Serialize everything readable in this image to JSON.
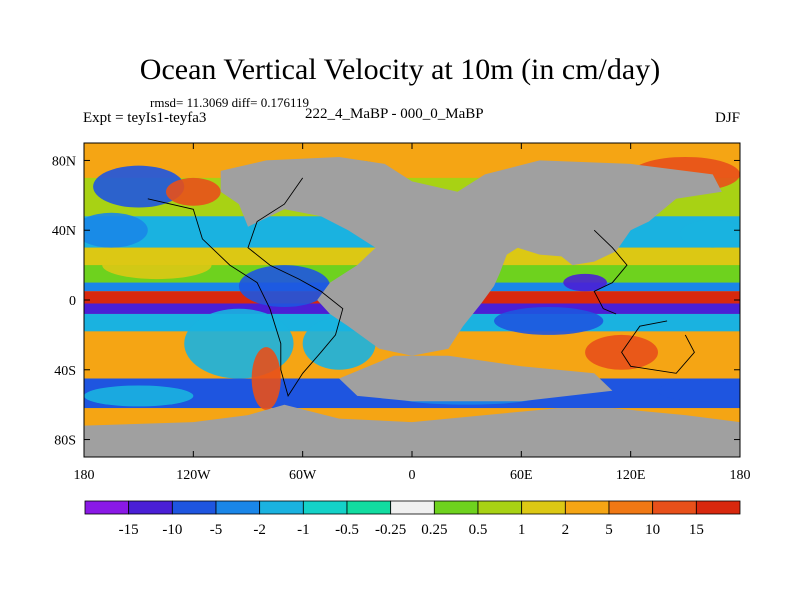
{
  "chart_data": {
    "type": "heatmap",
    "title": "Ocean Vertical Velocity at 10m (in cm/day)",
    "stats_text": "rmsd= 11.3069 diff= 0.176119",
    "left_label": "Expt = teyIs1-teyfa3",
    "center_label": "222_4_MaBP - 000_0_MaBP",
    "right_label": "DJF",
    "x_ticks": [
      "180",
      "120W",
      "60W",
      "0",
      "60E",
      "120E",
      "180"
    ],
    "x_values": [
      -180,
      -120,
      -60,
      0,
      60,
      120,
      180
    ],
    "y_ticks": [
      "80N",
      "40N",
      "0",
      "40S",
      "80S"
    ],
    "y_values": [
      80,
      40,
      0,
      -40,
      -80
    ],
    "xlim": [
      -180,
      180
    ],
    "ylim": [
      -90,
      90
    ],
    "colorbar": {
      "labels": [
        "-15",
        "-10",
        "-5",
        "-2",
        "-1",
        "-0.5",
        "-0.25",
        "0.25",
        "0.5",
        "1",
        "2",
        "5",
        "10",
        "15"
      ],
      "colors": [
        "#8a19e6",
        "#4a1fd6",
        "#1e55e0",
        "#1a86e8",
        "#1ab2e0",
        "#14d2c8",
        "#12dca0",
        "#f0f0f0",
        "#6ed21e",
        "#a8d214",
        "#dcc814",
        "#f5a514",
        "#f07814",
        "#e8501a",
        "#d8280e"
      ]
    }
  },
  "colors": {
    "land": "#a0a0a0",
    "coast": "#000000"
  }
}
